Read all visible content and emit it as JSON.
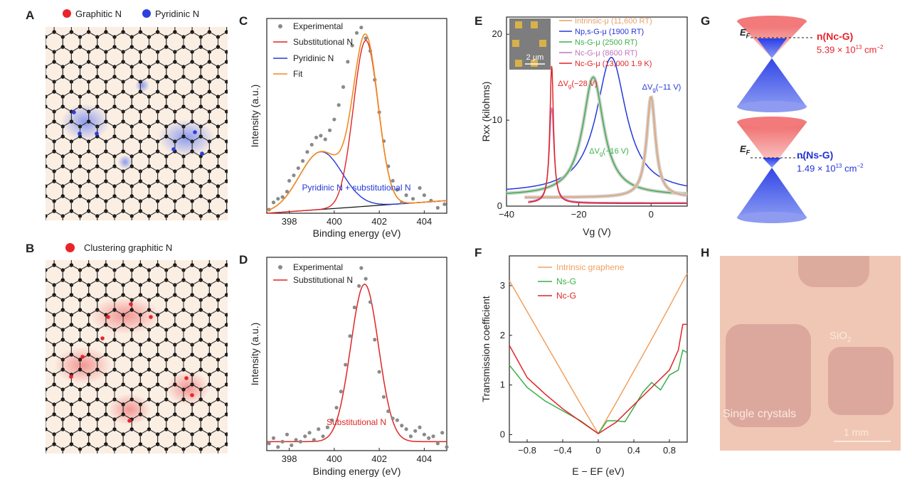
{
  "figure": {
    "panels": {
      "A": {
        "letter": "A",
        "legend": [
          {
            "label": "Graphitic N",
            "color": "#e8242a"
          },
          {
            "label": "Pyridinic N",
            "color": "#2a3fe0"
          }
        ]
      },
      "B": {
        "letter": "B",
        "legend": [
          {
            "label": "Clustering graphitic N",
            "color": "#e8242a"
          }
        ]
      },
      "G": {
        "letter": "G",
        "top": {
          "ef": "E",
          "ef_sub": "F",
          "name": "n(Nc-G)",
          "value": "5.39 × 10",
          "exp": "13",
          "unit": " cm",
          "unit_exp": "−2",
          "color": "#e8242a"
        },
        "bottom": {
          "ef": "E",
          "ef_sub": "F",
          "name": "n(Ns-G)",
          "value": "1.49 × 10",
          "exp": "13",
          "unit": " cm",
          "unit_exp": "−2",
          "color": "#2232d8"
        }
      },
      "H": {
        "letter": "H",
        "sio2": "SiO",
        "sio2_sub": "2",
        "crystals": "Single crystals",
        "scale": "1 mm"
      }
    }
  },
  "chart_data": [
    {
      "panel": "C",
      "type": "scatter",
      "title": "",
      "xlabel": "Binding energy (eV)",
      "ylabel": "Intensity (a.u.)",
      "xlim": [
        397,
        405
      ],
      "xticks": [
        398,
        400,
        402,
        404
      ],
      "ylim": [
        0,
        1.08
      ],
      "legend": [
        "Experimental",
        "Substitutional N",
        "Pyridinic N",
        "Fit"
      ],
      "legend_colors": [
        "#8a8a8a",
        "#e02424",
        "#2438d8",
        "#f08c1e"
      ],
      "annotation": "Pyridinic N + substitutional N",
      "series": [
        {
          "name": "Experimental",
          "kind": "points",
          "x": [
            397.1,
            397.3,
            397.5,
            397.7,
            397.9,
            398.0,
            398.2,
            398.4,
            398.6,
            398.8,
            399.0,
            399.2,
            399.4,
            399.6,
            399.8,
            400.0,
            400.2,
            400.4,
            400.6,
            400.8,
            401.0,
            401.2,
            401.4,
            401.6,
            401.8,
            402.0,
            402.2,
            402.4,
            402.6,
            402.8,
            403.0,
            403.2,
            403.5,
            403.8,
            404.0,
            404.3,
            404.6,
            404.9
          ],
          "y": [
            0.02,
            0.06,
            0.08,
            0.09,
            0.12,
            0.18,
            0.21,
            0.25,
            0.29,
            0.34,
            0.38,
            0.42,
            0.43,
            0.41,
            0.46,
            0.52,
            0.6,
            0.7,
            0.84,
            0.93,
            1.0,
            1.03,
            0.97,
            0.9,
            0.74,
            0.56,
            0.4,
            0.26,
            0.18,
            0.13,
            0.06,
            0.1,
            0.08,
            0.14,
            0.1,
            0.07,
            0.03,
            0.05
          ]
        },
        {
          "name": "Substitutional N",
          "kind": "gauss",
          "center": 401.4,
          "sigma": 0.55,
          "amp": 0.92
        },
        {
          "name": "Pyridinic N",
          "kind": "gauss",
          "center": 399.4,
          "sigma": 0.95,
          "amp": 0.32
        },
        {
          "name": "Fit",
          "kind": "sum"
        }
      ],
      "baseline": [
        [
          397,
          0.0
        ],
        [
          405,
          0.07
        ]
      ]
    },
    {
      "panel": "D",
      "type": "scatter",
      "title": "",
      "xlabel": "Binding energy (eV)",
      "ylabel": "Intensity (a.u.)",
      "xlim": [
        397,
        405
      ],
      "xticks": [
        398,
        400,
        402,
        404
      ],
      "ylim": [
        0,
        1.08
      ],
      "legend": [
        "Experimental",
        "Substitutional N"
      ],
      "legend_colors": [
        "#8a8a8a",
        "#e02424"
      ],
      "annotation": "Substitutional N",
      "series": [
        {
          "name": "Experimental",
          "kind": "points",
          "x": [
            397.1,
            397.3,
            397.5,
            397.7,
            397.9,
            398.1,
            398.3,
            398.5,
            398.7,
            398.9,
            399.1,
            399.3,
            399.5,
            399.7,
            399.9,
            400.1,
            400.3,
            400.5,
            400.7,
            400.9,
            401.1,
            401.2,
            401.4,
            401.6,
            401.8,
            402.0,
            402.2,
            402.4,
            402.6,
            402.8,
            403.0,
            403.2,
            403.4,
            403.6,
            403.8,
            404.0,
            404.2,
            404.4,
            404.6,
            404.8,
            405.0
          ],
          "y": [
            0.04,
            0.07,
            0.02,
            0.05,
            0.09,
            0.03,
            0.06,
            0.05,
            0.08,
            0.1,
            0.06,
            0.12,
            0.08,
            0.13,
            0.17,
            0.24,
            0.33,
            0.48,
            0.64,
            0.8,
            0.92,
            1.02,
            0.96,
            0.83,
            0.62,
            0.44,
            0.3,
            0.22,
            0.18,
            0.17,
            0.14,
            0.12,
            0.08,
            0.11,
            0.13,
            0.09,
            0.07,
            0.08,
            0.04,
            0.1,
            0.02
          ]
        },
        {
          "name": "Substitutional N",
          "kind": "gauss",
          "center": 401.35,
          "sigma": 0.62,
          "amp": 0.88,
          "offset": 0.05
        }
      ]
    },
    {
      "panel": "E",
      "type": "line",
      "title": "",
      "xlabel": "Vg (V)",
      "ylabel": "Rxx (kilohms)",
      "xlim": [
        -40,
        10
      ],
      "xticks": [
        -40,
        -20,
        0
      ],
      "ylim": [
        0,
        22
      ],
      "yticks": [
        0,
        10,
        20
      ],
      "inset_scale": "2 μm",
      "legend": [
        {
          "name": "Intrinsic-μ",
          "note": "(11,600 RT)",
          "color": "#e8a06a"
        },
        {
          "name": "Np,s-G-μ",
          "note": "(1900 RT)",
          "color": "#2438d8"
        },
        {
          "name": "Ns-G-μ",
          "note": "(2500 RT)",
          "color": "#3caf4a"
        },
        {
          "name": "Nc-G-μ",
          "note": "(8600 RT)",
          "color": "#c274c0"
        },
        {
          "name": "Nc-G-μ",
          "note": "(13,000 1.9 K)",
          "color": "#e02424"
        }
      ],
      "annotations": [
        {
          "text": "ΔV",
          "sub": "g",
          "rest": "(−28 V)",
          "color": "#e02424"
        },
        {
          "text": "ΔV",
          "sub": "g",
          "rest": "(−11 V)",
          "color": "#2438d8"
        },
        {
          "text": "ΔV",
          "sub": "g",
          "rest": "(−16 V)",
          "color": "#3caf4a"
        }
      ],
      "series": [
        {
          "name": "Np,s-G-μ",
          "center": -11,
          "peak": 17.3,
          "width": 10,
          "base": 1.5
        },
        {
          "name": "Ns-G-μ",
          "center": -16,
          "peak": 15.0,
          "width": 7,
          "base": 1.2
        },
        {
          "name": "Intrinsic-μ",
          "center": 0,
          "peak": 12.7,
          "width": 3,
          "base": 1.0
        },
        {
          "name": "Nc-G-μ (8600 RT)",
          "center": -27.5,
          "peak": 11.5,
          "width": 1.5,
          "base": 0.4
        },
        {
          "name": "Nc-G-μ (13,000 1.9 K)",
          "center": -27.5,
          "peak": 16.4,
          "width": 1.2,
          "base": 0.3
        }
      ]
    },
    {
      "panel": "F",
      "type": "line",
      "title": "",
      "xlabel": "E − EF (eV)",
      "ylabel": "Transmission coefficient",
      "xlim": [
        -1,
        1
      ],
      "xticks": [
        -0.8,
        -0.4,
        0.0,
        0.4,
        0.8
      ],
      "ylim": [
        -0.15,
        3.6
      ],
      "yticks": [
        0,
        1,
        2,
        3
      ],
      "legend": [
        "Intrinsic graphene",
        "Ns-G",
        "Nc-G"
      ],
      "legend_colors": [
        "#f0a060",
        "#3caf4a",
        "#e02424"
      ],
      "series": [
        {
          "name": "Intrinsic graphene",
          "x": [
            -1,
            -0.8,
            -0.6,
            -0.4,
            -0.2,
            0,
            0.2,
            0.4,
            0.6,
            0.8,
            1
          ],
          "y": [
            3.1,
            2.48,
            1.86,
            1.24,
            0.62,
            0.02,
            0.64,
            1.28,
            1.92,
            2.58,
            3.25
          ]
        },
        {
          "name": "Ns-G",
          "x": [
            -1,
            -0.8,
            -0.6,
            -0.4,
            -0.2,
            0,
            0.1,
            0.2,
            0.3,
            0.4,
            0.5,
            0.6,
            0.7,
            0.8,
            0.9,
            0.95,
            1
          ],
          "y": [
            1.4,
            0.95,
            0.68,
            0.48,
            0.28,
            0.02,
            0.28,
            0.28,
            0.26,
            0.55,
            0.85,
            1.05,
            0.9,
            1.2,
            1.3,
            1.7,
            1.65
          ]
        },
        {
          "name": "Nc-G",
          "x": [
            -1,
            -0.8,
            -0.6,
            -0.4,
            -0.2,
            0,
            0.2,
            0.4,
            0.6,
            0.8,
            0.9,
            0.95,
            1
          ],
          "y": [
            1.8,
            1.15,
            0.82,
            0.52,
            0.27,
            0.02,
            0.25,
            0.6,
            0.95,
            1.3,
            1.7,
            2.22,
            2.22
          ]
        }
      ]
    }
  ]
}
